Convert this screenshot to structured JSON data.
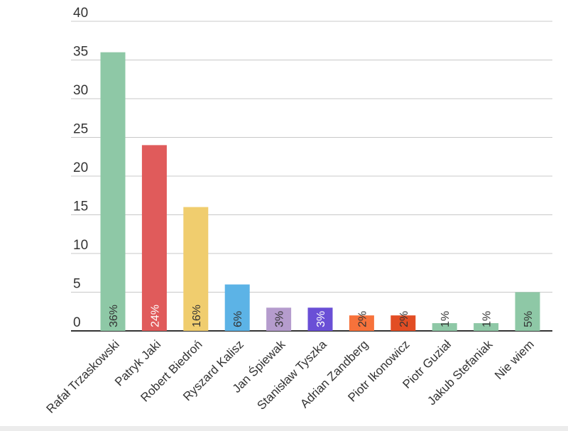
{
  "chart_data": {
    "type": "bar",
    "categories": [
      "Rafał Trzaskowski",
      "Patryk Jaki",
      "Robert Biedroń",
      "Ryszard Kalisz",
      "Jan Śpiewak",
      "Stanisław Tyszka",
      "Adrian Zandberg",
      "Piotr Ikonowicz",
      "Piotr Guział",
      "Jakub Stefaniak",
      "Nie wiem"
    ],
    "values": [
      36,
      24,
      16,
      6,
      3,
      3,
      2,
      2,
      1,
      1,
      5
    ],
    "data_labels": [
      "36%",
      "24%",
      "16%",
      "6%",
      "3%",
      "3%",
      "2%",
      "2%",
      "1%",
      "1%",
      "5%"
    ],
    "colors": [
      "#8ec8a6",
      "#e05b5b",
      "#f0cd6e",
      "#5cb3e6",
      "#b59ccd",
      "#6a4fd6",
      "#f7723b",
      "#e24d24",
      "#8ec8a6",
      "#8ec8a6",
      "#8ec8a6"
    ],
    "label_colors": [
      "#333333",
      "#ffffff",
      "#333333",
      "#333333",
      "#333333",
      "#ffffff",
      "#333333",
      "#333333",
      "#333333",
      "#333333",
      "#333333"
    ],
    "yticks": [
      0,
      5,
      10,
      15,
      20,
      25,
      30,
      35,
      40
    ],
    "ylim": [
      0,
      40
    ],
    "grid": true,
    "legend": false,
    "title": "",
    "xlabel": "",
    "ylabel": ""
  }
}
